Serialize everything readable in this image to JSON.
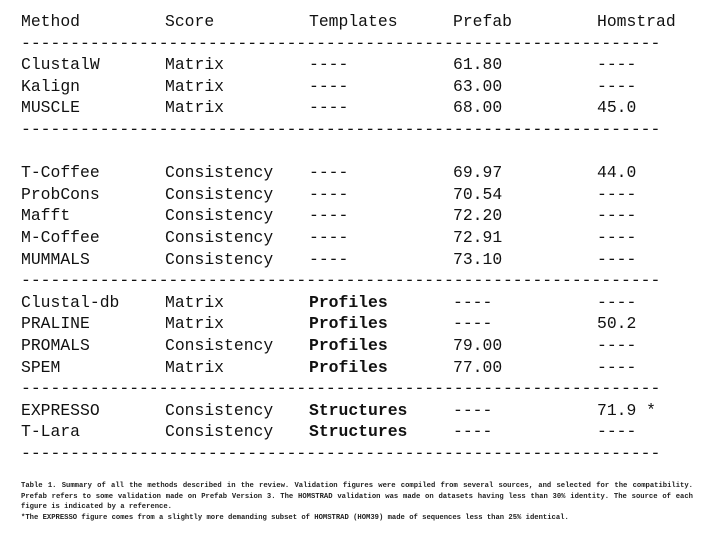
{
  "header": [
    "Method",
    "Score",
    "Templates",
    "Prefab",
    "Homstrad"
  ],
  "divider": "-----------------------------------------------------------------",
  "groups": [
    {
      "rows": [
        [
          "ClustalW",
          "Matrix",
          "----",
          "61.80",
          "----"
        ],
        [
          "Kalign",
          "Matrix",
          "----",
          "63.00",
          "----"
        ],
        [
          "MUSCLE",
          "Matrix",
          "----",
          "68.00",
          "45.0"
        ]
      ]
    },
    {
      "rows": [
        [
          "T-Coffee",
          "Consistency",
          "----",
          "69.97",
          "44.0"
        ],
        [
          "ProbCons",
          "Consistency",
          "----",
          "70.54",
          "----"
        ],
        [
          "Mafft",
          "Consistency",
          "----",
          "72.20",
          "----"
        ],
        [
          "M-Coffee",
          "Consistency",
          "----",
          "72.91",
          "----"
        ],
        [
          "MUMMALS",
          "Consistency",
          "----",
          "73.10",
          "----"
        ]
      ]
    },
    {
      "rows": [
        [
          "Clustal-db",
          "Matrix",
          "Profiles",
          "----",
          "----"
        ],
        [
          "PRALINE",
          "Matrix",
          "Profiles",
          "----",
          "50.2"
        ],
        [
          "PROMALS",
          "Consistency",
          "Profiles",
          "79.00",
          "----"
        ],
        [
          "SPEM",
          "Matrix",
          "Profiles",
          "77.00",
          "----"
        ]
      ]
    },
    {
      "rows": [
        [
          "EXPRESSO",
          "Consistency",
          "Structures",
          "----",
          "71.9 *"
        ],
        [
          "T-Lara",
          "Consistency",
          "Structures",
          "----",
          "----"
        ]
      ]
    }
  ],
  "caption": {
    "line1": "Table 1. Summary of all the methods described in the review. Validation figures were compiled from several sources, and selected for the compatibility. Prefab refers to some validation made on Prefab Version 3. The HOMSTRAD validation was made on datasets having less than 30% identity. The source of each figure is indicated by a reference.",
    "line2": "*The EXPRESSO figure comes from a slightly more demanding subset of HOMSTRAD (HOM39) made of sequences less than 25% identical."
  }
}
